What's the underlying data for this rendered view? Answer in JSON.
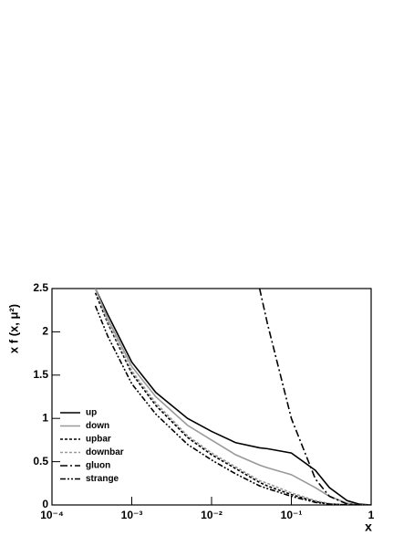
{
  "chart_data": {
    "type": "line",
    "xlabel": "x",
    "ylabel": "x f (x, μ²)",
    "xscale": "log",
    "xlim": [
      0.0001,
      1
    ],
    "ylim": [
      0,
      2.5
    ],
    "xticks": [
      {
        "value": 0.0001,
        "label": "10⁻⁴"
      },
      {
        "value": 0.001,
        "label": "10⁻³"
      },
      {
        "value": 0.01,
        "label": "10⁻²"
      },
      {
        "value": 0.1,
        "label": "10⁻¹"
      },
      1
    ],
    "yticks": [
      0,
      0.5,
      1,
      1.5,
      2,
      2.5
    ],
    "legend": "bottom-left",
    "x": [
      0.00035,
      0.0005,
      0.001,
      0.002,
      0.005,
      0.01,
      0.02,
      0.04,
      0.05,
      0.1,
      0.2,
      0.3,
      0.5,
      0.7,
      1
    ],
    "series": [
      {
        "name": "up",
        "color": "#000000",
        "dash": "solid",
        "values": [
          2.5,
          2.2,
          1.65,
          1.3,
          1.0,
          0.85,
          0.72,
          0.66,
          0.65,
          0.6,
          0.4,
          0.2,
          0.05,
          0.01,
          0
        ]
      },
      {
        "name": "down",
        "color": "#999999",
        "dash": "solid",
        "values": [
          2.5,
          2.15,
          1.6,
          1.25,
          0.92,
          0.75,
          0.58,
          0.46,
          0.43,
          0.35,
          0.2,
          0.1,
          0.02,
          0,
          0
        ]
      },
      {
        "name": "upbar",
        "color": "#000000",
        "dash": "dashed",
        "values": [
          2.45,
          2.1,
          1.52,
          1.15,
          0.78,
          0.58,
          0.42,
          0.26,
          0.22,
          0.12,
          0.04,
          0.01,
          0,
          0,
          0
        ]
      },
      {
        "name": "downbar",
        "color": "#999999",
        "dash": "dashed",
        "values": [
          2.5,
          2.12,
          1.55,
          1.18,
          0.8,
          0.6,
          0.44,
          0.28,
          0.25,
          0.14,
          0.05,
          0.015,
          0,
          0,
          0
        ]
      },
      {
        "name": "gluon",
        "color": "#000000",
        "dash": "dash-dot",
        "values": [
          null,
          null,
          null,
          null,
          null,
          null,
          null,
          2.5,
          2.1,
          1.0,
          0.3,
          0.1,
          0.01,
          0,
          0
        ]
      },
      {
        "name": "strange",
        "color": "#000000",
        "dash": "dash-dot-dot",
        "values": [
          2.3,
          1.95,
          1.4,
          1.05,
          0.7,
          0.52,
          0.36,
          0.22,
          0.19,
          0.1,
          0.03,
          0.01,
          0,
          0,
          0
        ]
      }
    ]
  }
}
